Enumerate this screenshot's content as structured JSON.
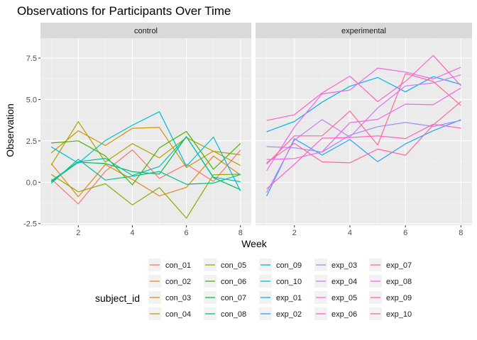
{
  "chart_data": {
    "type": "line",
    "title": "Observations for Participants Over Time",
    "xlabel": "Week",
    "ylabel": "Observation",
    "xlim": [
      0.6,
      8.4
    ],
    "ylim": [
      -2.6,
      8.7
    ],
    "x": [
      1,
      2,
      3,
      4,
      5,
      6,
      7,
      8
    ],
    "x_ticks": [
      2,
      4,
      6,
      8
    ],
    "y_ticks": [
      -2.5,
      0.0,
      2.5,
      5.0,
      7.5
    ],
    "y_tick_labels": [
      "-2.5",
      "0.0",
      "2.5",
      "5.0",
      "7.5"
    ],
    "grid": true,
    "legend_title": "subject_id",
    "legend_position": "bottom",
    "panels": [
      {
        "label": "control",
        "series": [
          {
            "name": "con_01",
            "color": "#F8766D",
            "values": [
              0.2,
              -1.31,
              0.66,
              1.96,
              0.23,
              1.09,
              0.05,
              1.94
            ]
          },
          {
            "name": "con_02",
            "color": "#E7851E",
            "values": [
              1.13,
              -0.88,
              1.07,
              0.17,
              -0.83,
              -0.31,
              1.58,
              0.44
            ]
          },
          {
            "name": "con_03",
            "color": "#D09400",
            "values": [
              1.77,
              3.11,
              2.22,
              3.26,
              3.31,
              0.89,
              1.88,
              1.01
            ]
          },
          {
            "name": "con_04",
            "color": "#B2A100",
            "values": [
              1.04,
              3.66,
              1.22,
              2.33,
              1.47,
              2.7,
              1.87,
              1.66
            ]
          },
          {
            "name": "con_05",
            "color": "#89AC00",
            "values": [
              0.47,
              -0.58,
              -0.09,
              -1.37,
              -0.32,
              -2.17,
              0.45,
              0.48
            ]
          },
          {
            "name": "con_06",
            "color": "#45B500",
            "values": [
              2.37,
              2.5,
              1.59,
              -0.16,
              2.08,
              3.07,
              0.78,
              2.35
            ]
          },
          {
            "name": "con_07",
            "color": "#00BC51",
            "values": [
              0.03,
              1.21,
              1.13,
              0.64,
              0.49,
              2.76,
              0.27,
              -0.45
            ]
          },
          {
            "name": "con_08",
            "color": "#00C087",
            "values": [
              -0.06,
              1.39,
              0.13,
              0.36,
              0.65,
              -0.12,
              -0.05,
              0.47
            ]
          },
          {
            "name": "con_09",
            "color": "#00C0B2",
            "values": [
              0.08,
              1.24,
              1.44,
              0.41,
              0.95,
              2.75,
              0.3,
              0.03
            ]
          },
          {
            "name": "con_10",
            "color": "#00BCD6",
            "values": [
              2.14,
              1.15,
              2.52,
              3.44,
              4.26,
              0.97,
              2.73,
              -0.53
            ]
          }
        ]
      },
      {
        "label": "experimental",
        "series": [
          {
            "name": "exp_01",
            "color": "#00B3F2",
            "values": [
              3.05,
              3.67,
              4.84,
              5.8,
              6.33,
              5.46,
              6.38,
              5.91
            ]
          },
          {
            "name": "exp_02",
            "color": "#29A3FF",
            "values": [
              -0.84,
              2.63,
              1.64,
              2.58,
              1.24,
              2.32,
              3.11,
              3.78
            ]
          },
          {
            "name": "exp_03",
            "color": "#9C8DFF",
            "values": [
              2.15,
              2.08,
              1.82,
              2.84,
              3.36,
              3.61,
              3.37,
              3.74
            ]
          },
          {
            "name": "exp_04",
            "color": "#D277FF",
            "values": [
              -0.62,
              2.54,
              3.78,
              2.73,
              4.49,
              5.82,
              6.0,
              6.49
            ]
          },
          {
            "name": "exp_05",
            "color": "#F166E8",
            "values": [
              0.7,
              3.33,
              5.34,
              5.57,
              6.9,
              6.66,
              6.24,
              6.95
            ]
          },
          {
            "name": "exp_06",
            "color": "#FF61C7",
            "values": [
              3.73,
              4.08,
              5.4,
              6.41,
              4.87,
              6.09,
              7.66,
              5.83
            ]
          },
          {
            "name": "exp_07",
            "color": "#FF689E",
            "values": [
              1.18,
              2.35,
              1.23,
              1.17,
              2.0,
              1.63,
              3.46,
              4.87
            ]
          },
          {
            "name": "exp_08",
            "color": "#F166E8",
            "values": [
              1.37,
              1.43,
              1.84,
              3.6,
              3.8,
              4.72,
              4.68,
              5.7
            ]
          },
          {
            "name": "exp_09",
            "color": "#FF61C7",
            "values": [
              -0.4,
              1.08,
              2.66,
              2.7,
              2.8,
              2.64,
              3.51,
              3.27
            ]
          },
          {
            "name": "exp_10",
            "color": "#FF689E",
            "values": [
              1.09,
              2.8,
              2.8,
              4.3,
              2.25,
              6.57,
              6.09,
              4.64
            ]
          }
        ]
      }
    ]
  }
}
